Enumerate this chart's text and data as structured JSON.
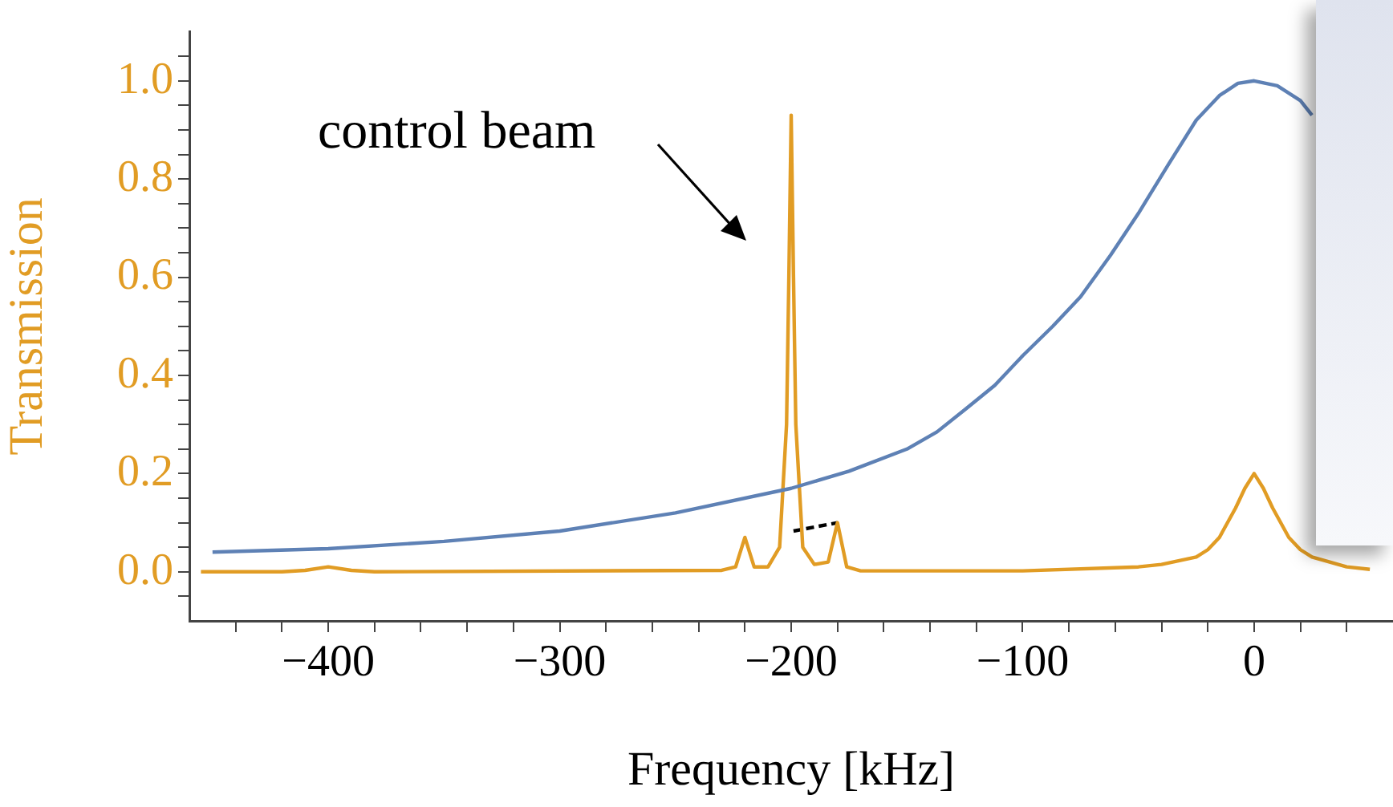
{
  "chart_data": {
    "type": "line",
    "xlabel": "Frequency [kHz]",
    "ylabel": "Transmission",
    "annotations": [
      "control beam"
    ],
    "xlim": [
      -460,
      60
    ],
    "ylim": [
      -0.1,
      1.1
    ],
    "xticks": [
      {
        "value": -440,
        "label": null
      },
      {
        "value": -420,
        "label": null
      },
      {
        "value": -400,
        "label": "−400"
      },
      {
        "value": -380,
        "label": null
      },
      {
        "value": -360,
        "label": null
      },
      {
        "value": -340,
        "label": null
      },
      {
        "value": -320,
        "label": null
      },
      {
        "value": -300,
        "label": "−300"
      },
      {
        "value": -280,
        "label": null
      },
      {
        "value": -260,
        "label": null
      },
      {
        "value": -240,
        "label": null
      },
      {
        "value": -220,
        "label": null
      },
      {
        "value": -200,
        "label": "−200"
      },
      {
        "value": -180,
        "label": null
      },
      {
        "value": -160,
        "label": null
      },
      {
        "value": -140,
        "label": null
      },
      {
        "value": -120,
        "label": null
      },
      {
        "value": -100,
        "label": "−100"
      },
      {
        "value": -80,
        "label": null
      },
      {
        "value": -60,
        "label": null
      },
      {
        "value": -40,
        "label": null
      },
      {
        "value": -20,
        "label": null
      },
      0,
      {
        "value": 20,
        "label": null
      },
      {
        "value": 40,
        "label": null
      }
    ],
    "yticks": [
      {
        "value": -0.05,
        "label": null
      },
      {
        "value": 0,
        "label": "0.0"
      },
      {
        "value": 0.05,
        "label": null
      },
      {
        "value": 0.1,
        "label": null
      },
      {
        "value": 0.15,
        "label": null
      },
      {
        "value": 0.2,
        "label": "0.2"
      },
      {
        "value": 0.25,
        "label": null
      },
      {
        "value": 0.3,
        "label": null
      },
      {
        "value": 0.35,
        "label": null
      },
      {
        "value": 0.4,
        "label": "0.4"
      },
      {
        "value": 0.45,
        "label": null
      },
      {
        "value": 0.5,
        "label": null
      },
      {
        "value": 0.55,
        "label": null
      },
      {
        "value": 0.6,
        "label": "0.6"
      },
      {
        "value": 0.65,
        "label": null
      },
      {
        "value": 0.7,
        "label": null
      },
      {
        "value": 0.75,
        "label": null
      },
      {
        "value": 0.8,
        "label": "0.8"
      },
      {
        "value": 0.85,
        "label": null
      },
      {
        "value": 0.9,
        "label": null
      },
      {
        "value": 0.95,
        "label": null
      },
      {
        "value": 1.0,
        "label": "1.0"
      },
      {
        "value": 1.05,
        "label": null
      }
    ],
    "series": [
      {
        "color": "#5e81b5",
        "x": [
          -450,
          -400,
          -350,
          -300,
          -250,
          -200,
          -175,
          -150,
          -137,
          -125,
          -112,
          -100,
          -87,
          -75,
          -62,
          -50,
          -37,
          -25,
          -15,
          -7,
          0,
          10,
          20,
          25
        ],
        "values": [
          0.04,
          0.047,
          0.062,
          0.083,
          0.12,
          0.17,
          0.205,
          0.25,
          0.285,
          0.33,
          0.38,
          0.44,
          0.5,
          0.56,
          0.645,
          0.73,
          0.83,
          0.92,
          0.97,
          0.995,
          1.0,
          0.99,
          0.96,
          0.93
        ]
      },
      {
        "color": "#e19c24",
        "x": [
          -455,
          -420,
          -410,
          -400,
          -390,
          -380,
          -230,
          -224,
          -220,
          -216,
          -210,
          -205,
          -202,
          -201,
          -200,
          -199,
          -198,
          -195,
          -190,
          -184,
          -180,
          -176,
          -170,
          -100,
          -50,
          -40,
          -25,
          -20,
          -15,
          -8,
          -4,
          0,
          4,
          8,
          15,
          20,
          25,
          40,
          50
        ],
        "values": [
          0,
          0,
          0.003,
          0.01,
          0.003,
          0,
          0.003,
          0.01,
          0.07,
          0.01,
          0.01,
          0.05,
          0.3,
          0.6,
          0.93,
          0.6,
          0.3,
          0.05,
          0.015,
          0.02,
          0.1,
          0.01,
          0.002,
          0.002,
          0.01,
          0.015,
          0.03,
          0.045,
          0.07,
          0.13,
          0.17,
          0.2,
          0.17,
          0.13,
          0.07,
          0.045,
          0.03,
          0.01,
          0.005
        ]
      },
      {
        "color": "#000000",
        "line_style": "dashed",
        "x": [
          -199,
          -180
        ],
        "values": [
          0.083,
          0.1
        ]
      }
    ]
  }
}
